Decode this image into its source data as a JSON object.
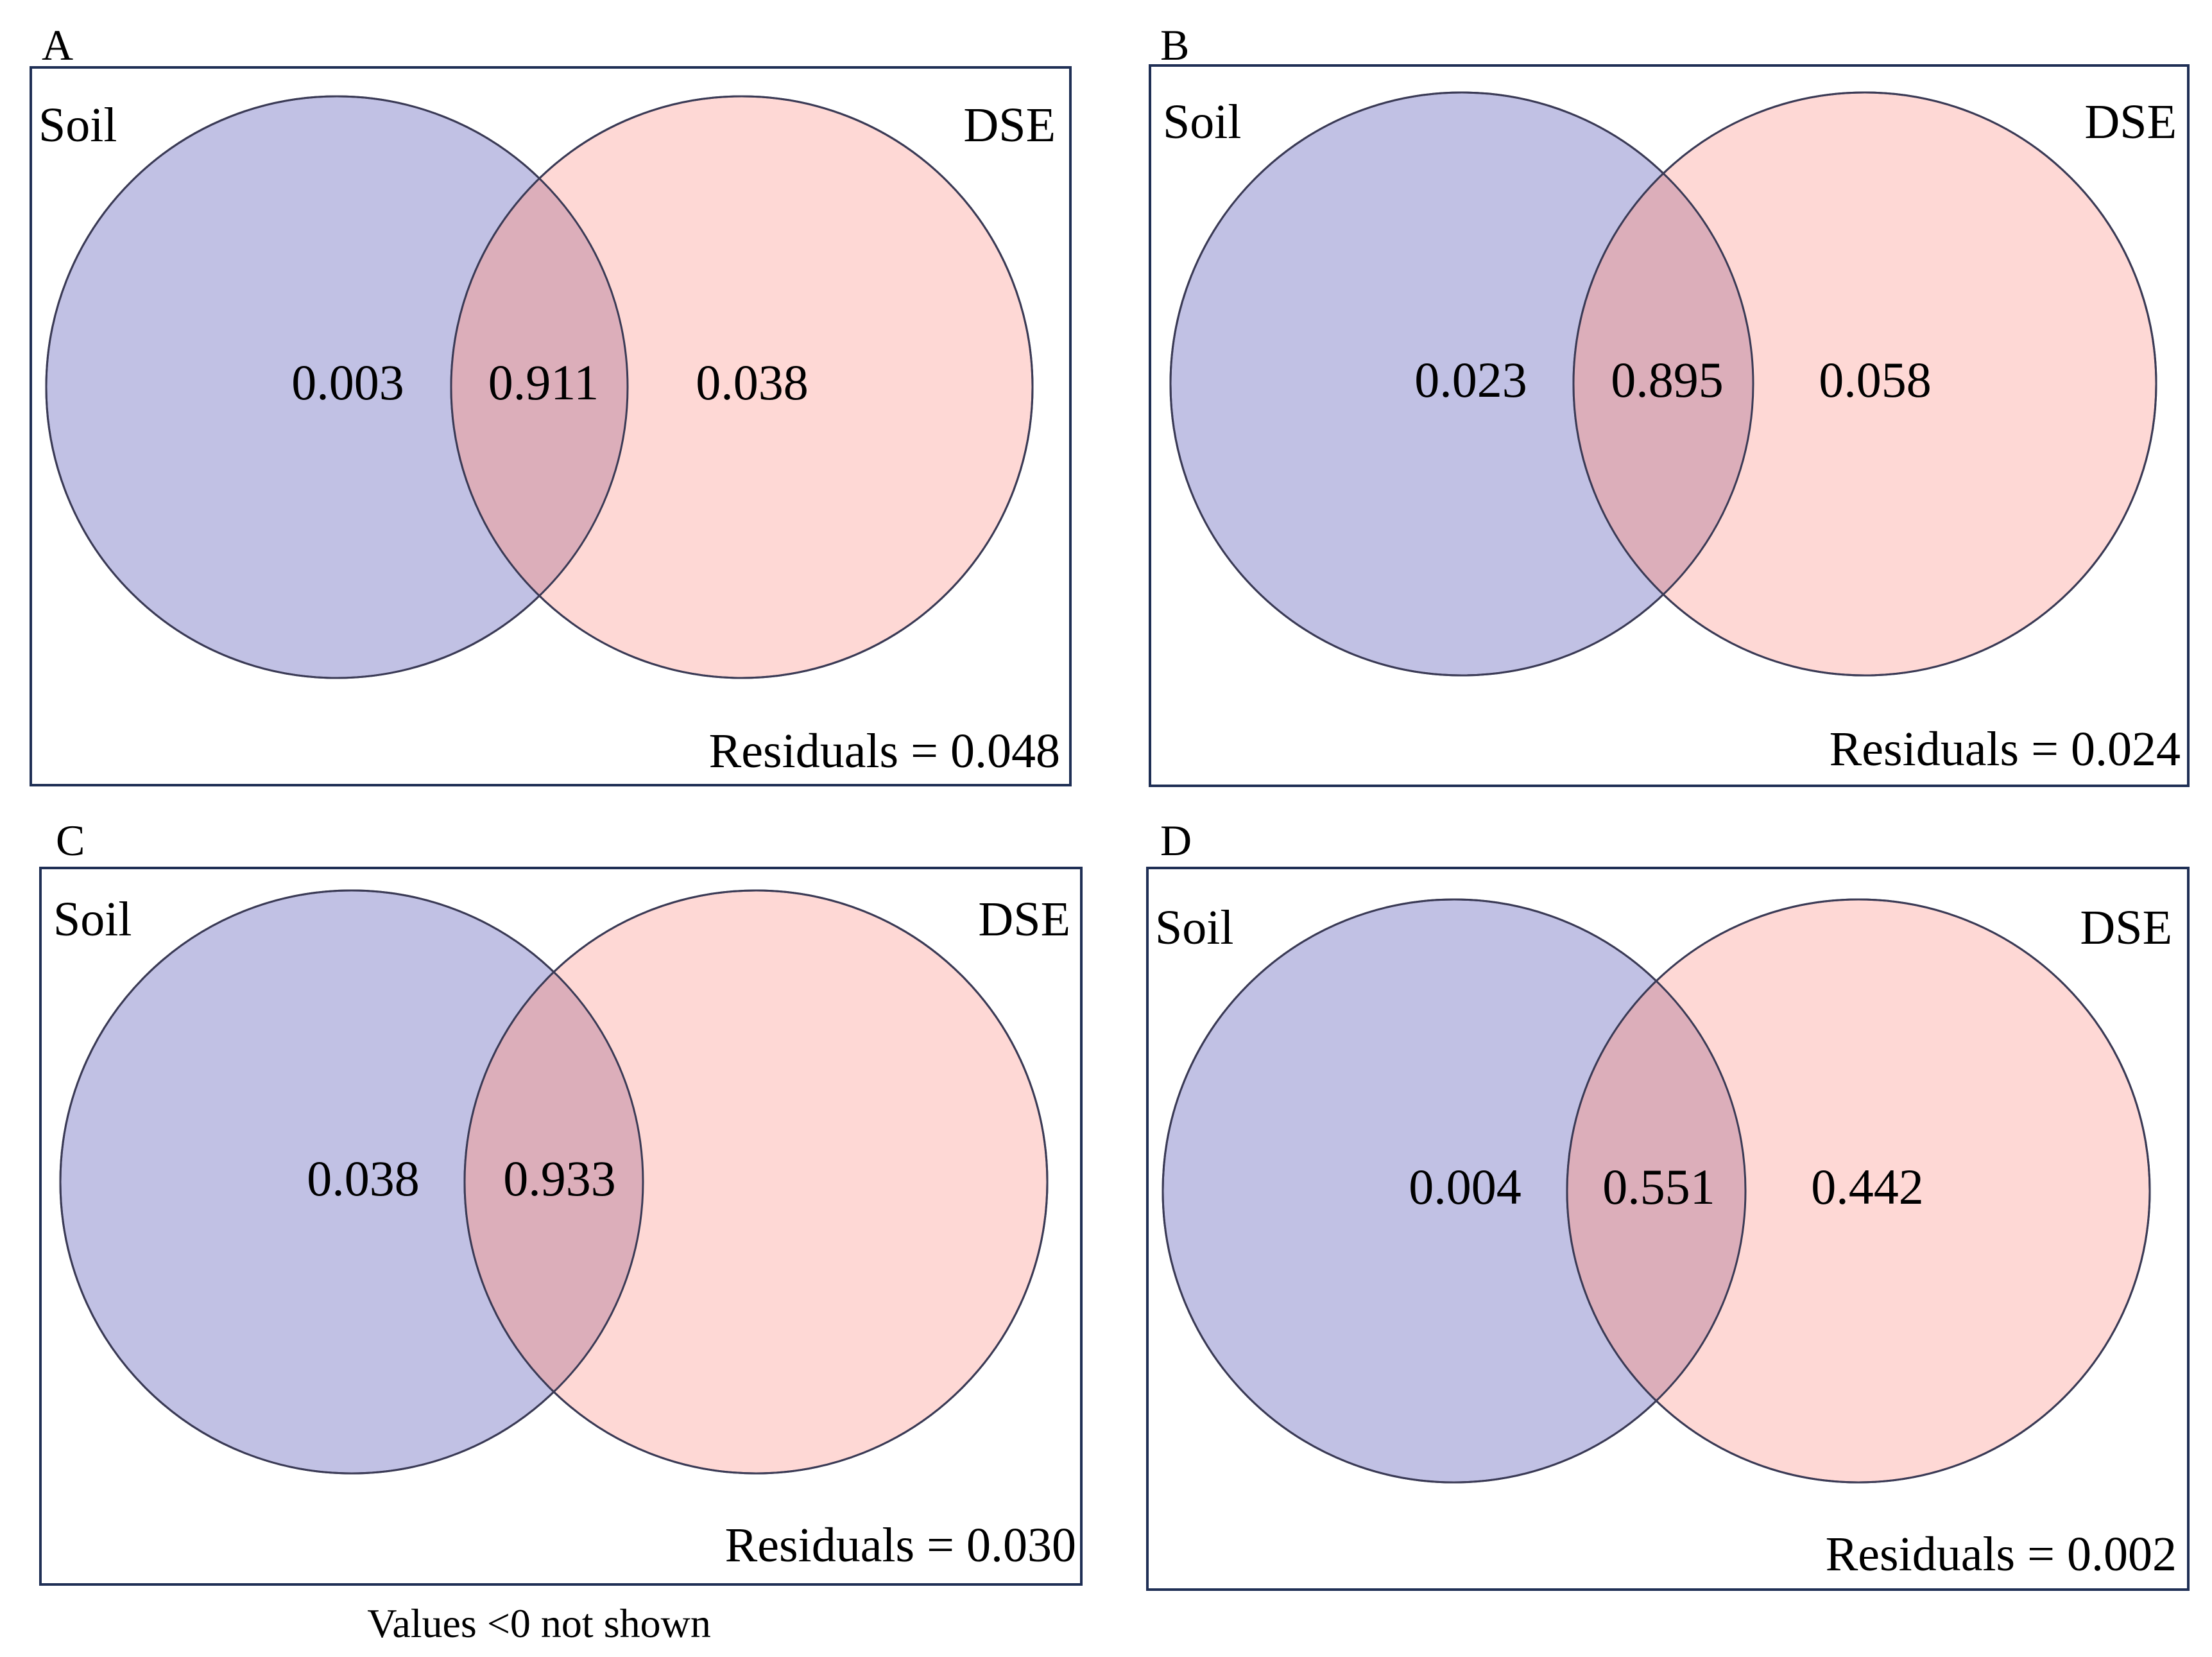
{
  "colors": {
    "soil": "#c1c1e4",
    "dse": "#fed8d5",
    "overlap": "#dcaeba",
    "frame": "#1f2f55"
  },
  "panels": [
    {
      "letter": "A",
      "soil_label": "Soil",
      "dse_label": "DSE",
      "soil_only": "0.003",
      "shared": "0.911",
      "dse_only": "0.038",
      "residuals": "Residuals = 0.048"
    },
    {
      "letter": "B",
      "soil_label": "Soil",
      "dse_label": "DSE",
      "soil_only": "0.023",
      "shared": "0.895",
      "dse_only": "0.058",
      "residuals": "Residuals = 0.024"
    },
    {
      "letter": "C",
      "soil_label": "Soil",
      "dse_label": "DSE",
      "soil_only": "0.038",
      "shared": "0.933",
      "dse_only": "",
      "residuals": "Residuals = 0.030"
    },
    {
      "letter": "D",
      "soil_label": "Soil",
      "dse_label": "DSE",
      "soil_only": "0.004",
      "shared": "0.551",
      "dse_only": "0.442",
      "residuals": "Residuals = 0.002"
    }
  ],
  "footnote": "Values <0 not shown"
}
